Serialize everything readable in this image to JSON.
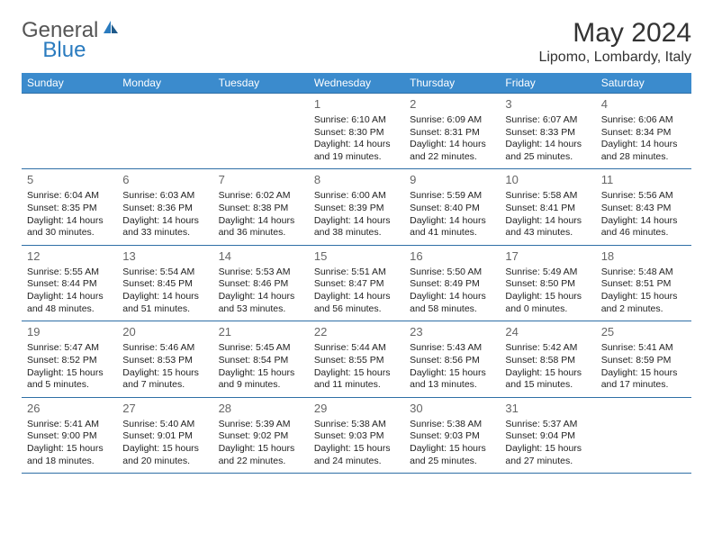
{
  "brand": {
    "general": "General",
    "blue": "Blue"
  },
  "title": "May 2024",
  "location": "Lipomo, Lombardy, Italy",
  "colors": {
    "header_bg": "#3b8bcd",
    "header_text": "#ffffff",
    "row_border": "#2f6fa6",
    "brand_blue": "#2a7bbf",
    "text": "#222222",
    "daynum": "#666666"
  },
  "weekdays": [
    "Sunday",
    "Monday",
    "Tuesday",
    "Wednesday",
    "Thursday",
    "Friday",
    "Saturday"
  ],
  "weeks": [
    [
      null,
      null,
      null,
      {
        "n": "1",
        "sr": "Sunrise: 6:10 AM",
        "ss": "Sunset: 8:30 PM",
        "d1": "Daylight: 14 hours",
        "d2": "and 19 minutes."
      },
      {
        "n": "2",
        "sr": "Sunrise: 6:09 AM",
        "ss": "Sunset: 8:31 PM",
        "d1": "Daylight: 14 hours",
        "d2": "and 22 minutes."
      },
      {
        "n": "3",
        "sr": "Sunrise: 6:07 AM",
        "ss": "Sunset: 8:33 PM",
        "d1": "Daylight: 14 hours",
        "d2": "and 25 minutes."
      },
      {
        "n": "4",
        "sr": "Sunrise: 6:06 AM",
        "ss": "Sunset: 8:34 PM",
        "d1": "Daylight: 14 hours",
        "d2": "and 28 minutes."
      }
    ],
    [
      {
        "n": "5",
        "sr": "Sunrise: 6:04 AM",
        "ss": "Sunset: 8:35 PM",
        "d1": "Daylight: 14 hours",
        "d2": "and 30 minutes."
      },
      {
        "n": "6",
        "sr": "Sunrise: 6:03 AM",
        "ss": "Sunset: 8:36 PM",
        "d1": "Daylight: 14 hours",
        "d2": "and 33 minutes."
      },
      {
        "n": "7",
        "sr": "Sunrise: 6:02 AM",
        "ss": "Sunset: 8:38 PM",
        "d1": "Daylight: 14 hours",
        "d2": "and 36 minutes."
      },
      {
        "n": "8",
        "sr": "Sunrise: 6:00 AM",
        "ss": "Sunset: 8:39 PM",
        "d1": "Daylight: 14 hours",
        "d2": "and 38 minutes."
      },
      {
        "n": "9",
        "sr": "Sunrise: 5:59 AM",
        "ss": "Sunset: 8:40 PM",
        "d1": "Daylight: 14 hours",
        "d2": "and 41 minutes."
      },
      {
        "n": "10",
        "sr": "Sunrise: 5:58 AM",
        "ss": "Sunset: 8:41 PM",
        "d1": "Daylight: 14 hours",
        "d2": "and 43 minutes."
      },
      {
        "n": "11",
        "sr": "Sunrise: 5:56 AM",
        "ss": "Sunset: 8:43 PM",
        "d1": "Daylight: 14 hours",
        "d2": "and 46 minutes."
      }
    ],
    [
      {
        "n": "12",
        "sr": "Sunrise: 5:55 AM",
        "ss": "Sunset: 8:44 PM",
        "d1": "Daylight: 14 hours",
        "d2": "and 48 minutes."
      },
      {
        "n": "13",
        "sr": "Sunrise: 5:54 AM",
        "ss": "Sunset: 8:45 PM",
        "d1": "Daylight: 14 hours",
        "d2": "and 51 minutes."
      },
      {
        "n": "14",
        "sr": "Sunrise: 5:53 AM",
        "ss": "Sunset: 8:46 PM",
        "d1": "Daylight: 14 hours",
        "d2": "and 53 minutes."
      },
      {
        "n": "15",
        "sr": "Sunrise: 5:51 AM",
        "ss": "Sunset: 8:47 PM",
        "d1": "Daylight: 14 hours",
        "d2": "and 56 minutes."
      },
      {
        "n": "16",
        "sr": "Sunrise: 5:50 AM",
        "ss": "Sunset: 8:49 PM",
        "d1": "Daylight: 14 hours",
        "d2": "and 58 minutes."
      },
      {
        "n": "17",
        "sr": "Sunrise: 5:49 AM",
        "ss": "Sunset: 8:50 PM",
        "d1": "Daylight: 15 hours",
        "d2": "and 0 minutes."
      },
      {
        "n": "18",
        "sr": "Sunrise: 5:48 AM",
        "ss": "Sunset: 8:51 PM",
        "d1": "Daylight: 15 hours",
        "d2": "and 2 minutes."
      }
    ],
    [
      {
        "n": "19",
        "sr": "Sunrise: 5:47 AM",
        "ss": "Sunset: 8:52 PM",
        "d1": "Daylight: 15 hours",
        "d2": "and 5 minutes."
      },
      {
        "n": "20",
        "sr": "Sunrise: 5:46 AM",
        "ss": "Sunset: 8:53 PM",
        "d1": "Daylight: 15 hours",
        "d2": "and 7 minutes."
      },
      {
        "n": "21",
        "sr": "Sunrise: 5:45 AM",
        "ss": "Sunset: 8:54 PM",
        "d1": "Daylight: 15 hours",
        "d2": "and 9 minutes."
      },
      {
        "n": "22",
        "sr": "Sunrise: 5:44 AM",
        "ss": "Sunset: 8:55 PM",
        "d1": "Daylight: 15 hours",
        "d2": "and 11 minutes."
      },
      {
        "n": "23",
        "sr": "Sunrise: 5:43 AM",
        "ss": "Sunset: 8:56 PM",
        "d1": "Daylight: 15 hours",
        "d2": "and 13 minutes."
      },
      {
        "n": "24",
        "sr": "Sunrise: 5:42 AM",
        "ss": "Sunset: 8:58 PM",
        "d1": "Daylight: 15 hours",
        "d2": "and 15 minutes."
      },
      {
        "n": "25",
        "sr": "Sunrise: 5:41 AM",
        "ss": "Sunset: 8:59 PM",
        "d1": "Daylight: 15 hours",
        "d2": "and 17 minutes."
      }
    ],
    [
      {
        "n": "26",
        "sr": "Sunrise: 5:41 AM",
        "ss": "Sunset: 9:00 PM",
        "d1": "Daylight: 15 hours",
        "d2": "and 18 minutes."
      },
      {
        "n": "27",
        "sr": "Sunrise: 5:40 AM",
        "ss": "Sunset: 9:01 PM",
        "d1": "Daylight: 15 hours",
        "d2": "and 20 minutes."
      },
      {
        "n": "28",
        "sr": "Sunrise: 5:39 AM",
        "ss": "Sunset: 9:02 PM",
        "d1": "Daylight: 15 hours",
        "d2": "and 22 minutes."
      },
      {
        "n": "29",
        "sr": "Sunrise: 5:38 AM",
        "ss": "Sunset: 9:03 PM",
        "d1": "Daylight: 15 hours",
        "d2": "and 24 minutes."
      },
      {
        "n": "30",
        "sr": "Sunrise: 5:38 AM",
        "ss": "Sunset: 9:03 PM",
        "d1": "Daylight: 15 hours",
        "d2": "and 25 minutes."
      },
      {
        "n": "31",
        "sr": "Sunrise: 5:37 AM",
        "ss": "Sunset: 9:04 PM",
        "d1": "Daylight: 15 hours",
        "d2": "and 27 minutes."
      },
      null
    ]
  ]
}
